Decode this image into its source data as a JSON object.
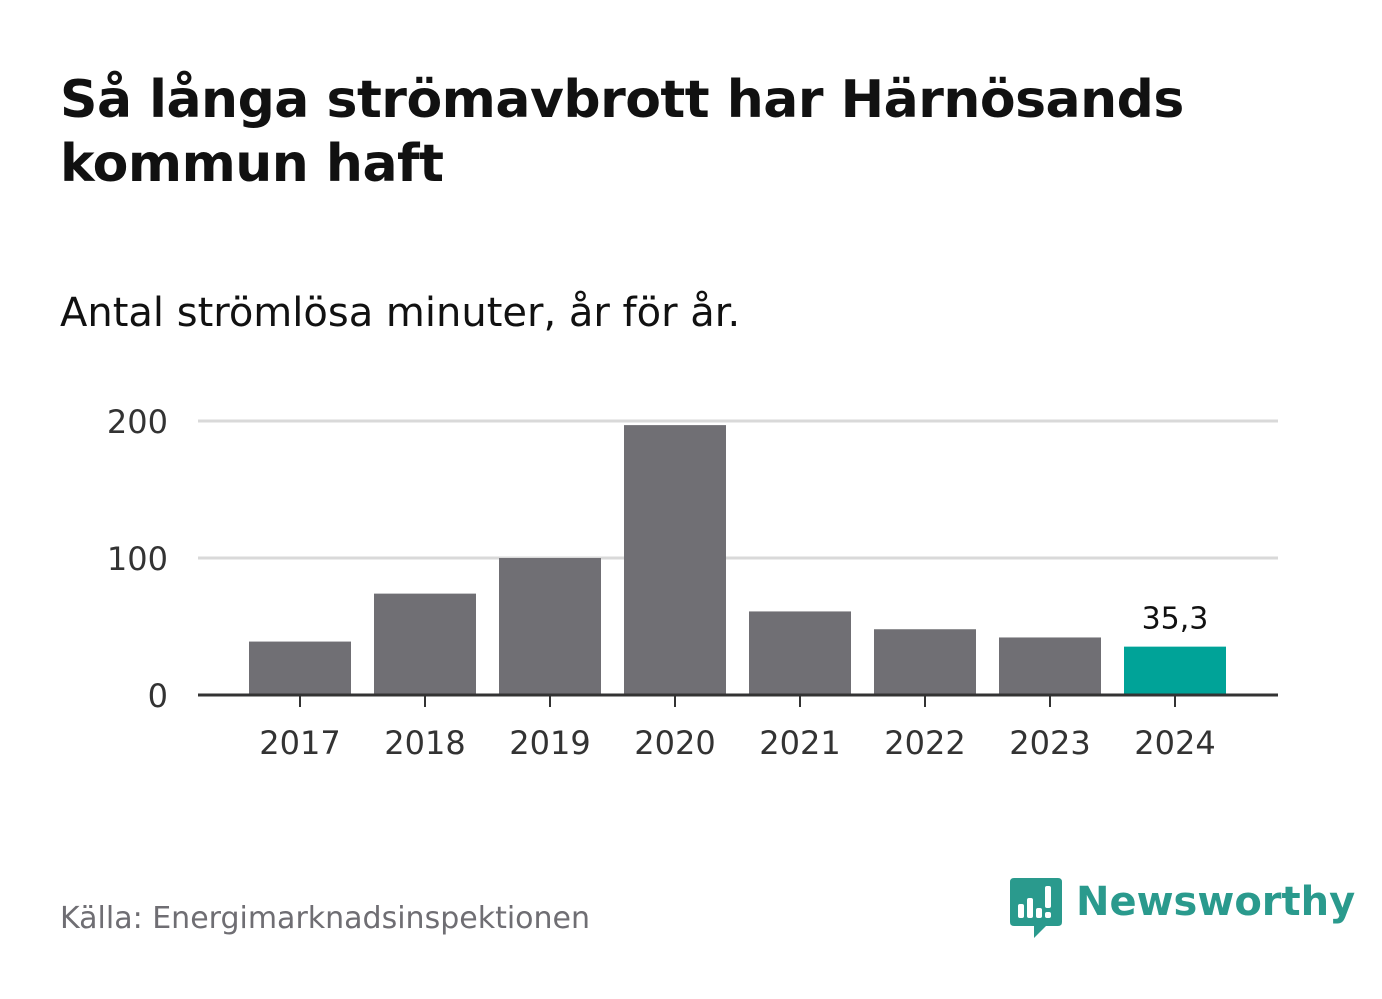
{
  "header": {
    "title": "Så långa strömavbrott har Härnösands kommun haft",
    "subtitle": "Antal strömlösa minuter, år för år."
  },
  "footer": {
    "source": "Källa: Energimarknadsinspektionen",
    "brand": "Newsworthy",
    "brand_icon": "bar-chart-speech-bubble-icon"
  },
  "colors": {
    "bar": "#706f74",
    "highlight": "#00a398",
    "brand": "#2a9a8d",
    "grid": "#d9d9d9",
    "axis": "#333333"
  },
  "chart_data": {
    "type": "bar",
    "title": "Så långa strömavbrott har Härnösands kommun haft",
    "subtitle": "Antal strömlösa minuter, år för år.",
    "xlabel": "",
    "ylabel": "",
    "categories": [
      "2017",
      "2018",
      "2019",
      "2020",
      "2021",
      "2022",
      "2023",
      "2024"
    ],
    "values": [
      39,
      74,
      100,
      197,
      61,
      48,
      42,
      35.3
    ],
    "highlight_index": 7,
    "data_labels": [
      {
        "index": 7,
        "text": "35,3"
      }
    ],
    "y_ticks": [
      0,
      100,
      200
    ],
    "ylim": [
      0,
      200
    ],
    "grid": true,
    "legend": "none"
  }
}
